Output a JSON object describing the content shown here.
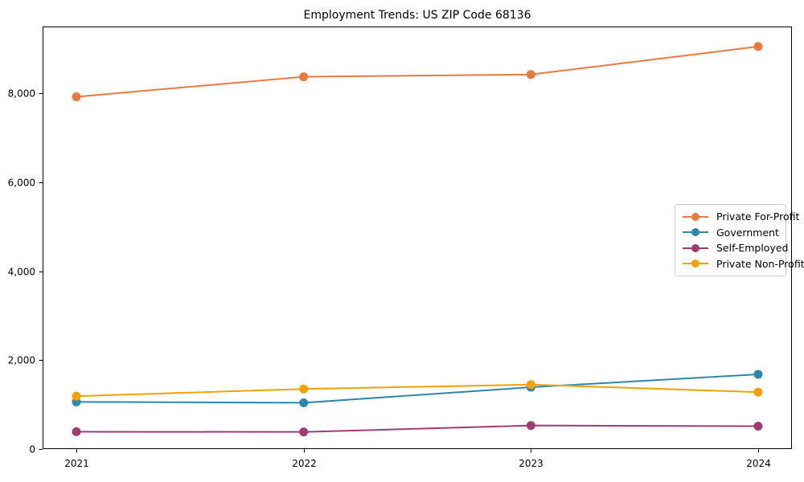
{
  "chart_data": {
    "type": "line",
    "title": "Employment Trends: US ZIP Code 68136",
    "xlabel": "",
    "ylabel": "",
    "x_tick_labels": [
      "2021",
      "2022",
      "2023",
      "2024"
    ],
    "y_ticks": [
      0,
      2000,
      4000,
      6000,
      8000
    ],
    "y_tick_labels": [
      "0",
      "2,000",
      "4,000",
      "6,000",
      "8,000"
    ],
    "ylim": [
      0,
      9500
    ],
    "grid": false,
    "legend_position": "center-right",
    "marker": "circle",
    "series": [
      {
        "name": "Private For-Profit",
        "color": "#E8793F",
        "values": [
          7920,
          8370,
          8420,
          9050
        ]
      },
      {
        "name": "Government",
        "color": "#2E86AB",
        "values": [
          1060,
          1040,
          1390,
          1680
        ]
      },
      {
        "name": "Self-Employed",
        "color": "#A23B72",
        "values": [
          390,
          385,
          530,
          515
        ]
      },
      {
        "name": "Private Non-Profit",
        "color": "#F2A104",
        "values": [
          1190,
          1350,
          1450,
          1280
        ]
      }
    ],
    "axis_color": "#000000",
    "text_color": "#000000",
    "legend_border_color": "#cccccc",
    "background_color": "#ffffff"
  }
}
